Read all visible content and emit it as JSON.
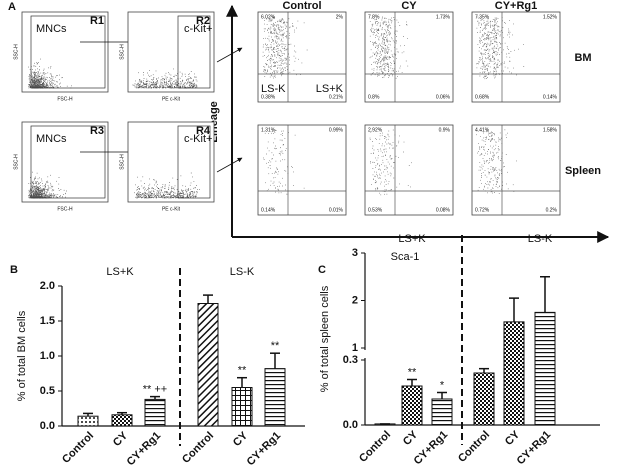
{
  "panel_a": {
    "letter": "A",
    "gating": [
      {
        "gate_label": "MNCs",
        "region": "R1",
        "x_label": "FSC-H",
        "y_label": "SSC-H"
      },
      {
        "gate_label": "c-Kit+",
        "region": "R2",
        "x_label": "PE c-Kit",
        "y_label": "SSC-H"
      },
      {
        "gate_label": "MNCs",
        "region": "R3",
        "x_label": "FSC-H",
        "y_label": "SSC-H"
      },
      {
        "gate_label": "c-Kit+",
        "region": "R4",
        "x_label": "PE c-Kit",
        "y_label": "SSC-H"
      }
    ],
    "columns": [
      "Control",
      "CY",
      "CY+Rg1"
    ],
    "rows": [
      {
        "label": "BM",
        "quadrants": [
          [
            "6.02%",
            "2%",
            "0.38%",
            "0.21%"
          ],
          [
            "7.8%",
            "1.73%",
            "0.8%",
            "0.06%"
          ],
          [
            "7.35%",
            "1.52%",
            "0.68%",
            "0.14%"
          ]
        ]
      },
      {
        "label": "Spleen",
        "quadrants": [
          [
            "1.31%",
            "0.99%",
            "0.14%",
            "0.01%"
          ],
          [
            "2.92%",
            "0.9%",
            "0.53%",
            "0.08%"
          ],
          [
            "4.41%",
            "1.58%",
            "0.72%",
            "0.2%"
          ]
        ]
      }
    ],
    "quadrant_names": [
      "LS-K",
      "LS+K"
    ],
    "y_axis": "Lineage",
    "x_axis": "Sca-1"
  },
  "chart_data": [
    {
      "type": "bar",
      "letter": "B",
      "y_label": "% of total BM cells",
      "ylim": [
        0,
        2
      ],
      "yticks": [
        {
          "value": 0,
          "label": "0.0"
        },
        {
          "value": 0.5,
          "label": "0.5"
        },
        {
          "value": 1,
          "label": "1.0"
        },
        {
          "value": 1.5,
          "label": "1.5"
        },
        {
          "value": 2,
          "label": "2.0"
        }
      ],
      "groups": [
        {
          "name": "LS+K",
          "categories": [
            "Control",
            "CY",
            "CY+Rg1"
          ],
          "values": [
            0.14,
            0.16,
            0.38
          ],
          "errors": [
            0.04,
            0.03,
            0.04
          ],
          "patterns": [
            "dots",
            "check",
            "hlines"
          ],
          "annotations": [
            null,
            null,
            "** ++"
          ]
        },
        {
          "name": "LS-K",
          "categories": [
            "Control",
            "CY",
            "CY+Rg1"
          ],
          "values": [
            1.75,
            0.55,
            0.82
          ],
          "errors": [
            0.12,
            0.14,
            0.22
          ],
          "patterns": [
            "diag",
            "grid",
            "hlines"
          ],
          "annotations": [
            null,
            "**",
            "**"
          ]
        }
      ]
    },
    {
      "type": "bar",
      "letter": "C",
      "y_label": "% of total spleen cells",
      "ylim": [
        0,
        3
      ],
      "y_break": [
        0.3,
        1
      ],
      "yticks": [
        {
          "value": 0,
          "label": "0.0"
        },
        0.3,
        1,
        2,
        3
      ],
      "groups": [
        {
          "name": "LS+K",
          "categories": [
            "Control",
            "CY",
            "CY+Rg1"
          ],
          "values": [
            0.005,
            0.18,
            0.12
          ],
          "errors": [
            0,
            0.03,
            0.03
          ],
          "patterns": [
            "dots",
            "check",
            "hlines"
          ],
          "annotations": [
            null,
            "**",
            "*"
          ]
        },
        {
          "name": "LS-K",
          "categories": [
            "Control",
            "CY",
            "CY+Rg1"
          ],
          "values": [
            0.24,
            1.55,
            1.75
          ],
          "errors": [
            0.02,
            0.5,
            0.75
          ],
          "patterns": [
            "check",
            "check",
            "hlines"
          ],
          "annotations": [
            null,
            null,
            null
          ]
        }
      ]
    }
  ]
}
